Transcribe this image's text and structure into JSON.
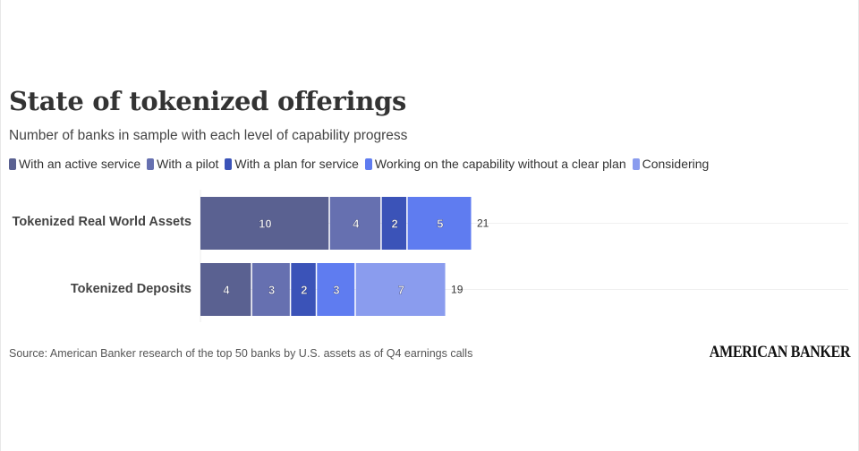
{
  "title": "State of tokenized offerings",
  "subtitle": "Number of banks in sample with each level of capability progress",
  "source": "Source: American Banker research of the top 50 banks by U.S. assets as of Q4 earnings calls",
  "brand": "AMERICAN BANKER",
  "chart_data": {
    "type": "bar",
    "orientation": "horizontal",
    "stacked": true,
    "title": "State of tokenized offerings",
    "subtitle": "Number of banks in sample with each level of capability progress",
    "categories": [
      "Tokenized Real World Assets",
      "Tokenized Deposits"
    ],
    "series": [
      {
        "name": "With an active service",
        "color": "#5a6191",
        "values": [
          10,
          4
        ]
      },
      {
        "name": "With a pilot",
        "color": "#6670b0",
        "values": [
          4,
          3
        ]
      },
      {
        "name": "With a plan for service",
        "color": "#3b53b8",
        "values": [
          2,
          2
        ]
      },
      {
        "name": "Working on the capability without a clear plan",
        "color": "#5f7cf0",
        "values": [
          5,
          3
        ]
      },
      {
        "name": "Considering",
        "color": "#8a9cee",
        "values": [
          0,
          7
        ]
      }
    ],
    "totals": [
      21,
      19
    ],
    "xlabel": "",
    "ylabel": "",
    "xlim": [
      0,
      21
    ],
    "grid": true,
    "legend": "top-left"
  }
}
